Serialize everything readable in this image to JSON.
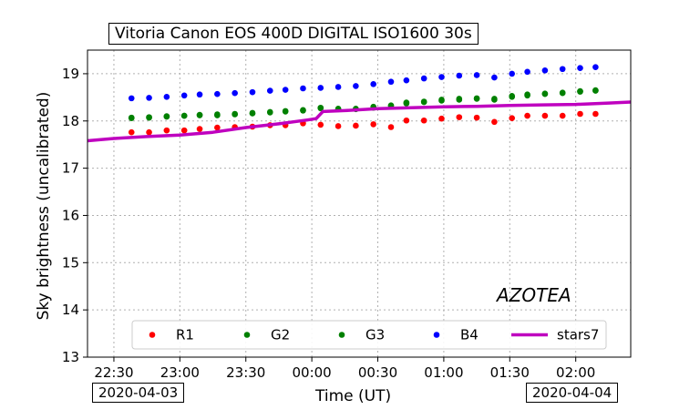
{
  "chart_data": {
    "type": "scatter",
    "title": "Vitoria  Canon EOS 400D DIGITAL  ISO1600 30s",
    "xlabel": "Time (UT)",
    "ylabel": "Sky brightness (uncalibrated)",
    "annotation": "AZOTEA",
    "date_start": "2020-04-03",
    "date_end": "2020-04-04",
    "xlim": [
      "22:18",
      "02:25"
    ],
    "ylim": [
      13,
      19.5
    ],
    "x_ticks": [
      "22:30",
      "23:00",
      "23:30",
      "00:00",
      "00:30",
      "01:00",
      "01:30",
      "02:00"
    ],
    "y_ticks": [
      13,
      14,
      15,
      16,
      17,
      18,
      19
    ],
    "grid": true,
    "legend_position": "bottom",
    "series": [
      {
        "name": "R1",
        "color": "#ff0000",
        "style": "points",
        "x": [
          "22:38",
          "22:46",
          "22:54",
          "23:02",
          "23:09",
          "23:17",
          "23:25",
          "23:33",
          "23:41",
          "23:48",
          "23:56",
          "00:04",
          "00:12",
          "00:20",
          "00:28",
          "00:36",
          "00:43",
          "00:51",
          "00:59",
          "01:07",
          "01:15",
          "01:23",
          "01:31",
          "01:38",
          "01:46",
          "01:54",
          "02:02",
          "02:09"
        ],
        "y": [
          17.76,
          17.76,
          17.8,
          17.8,
          17.83,
          17.86,
          17.87,
          17.88,
          17.91,
          17.91,
          17.95,
          17.92,
          17.89,
          17.9,
          17.93,
          17.87,
          18.01,
          18.01,
          18.05,
          18.08,
          18.07,
          17.98,
          18.06,
          18.11,
          18.11,
          18.11,
          18.15,
          18.15
        ]
      },
      {
        "name": "G2",
        "color": "#008000",
        "style": "points",
        "x": [
          "22:38",
          "22:46",
          "22:54",
          "23:02",
          "23:09",
          "23:17",
          "23:25",
          "23:33",
          "23:41",
          "23:48",
          "23:56",
          "00:04",
          "00:12",
          "00:20",
          "00:28",
          "00:36",
          "00:43",
          "00:51",
          "00:59",
          "01:07",
          "01:15",
          "01:23",
          "01:31",
          "01:38",
          "01:46",
          "01:54",
          "02:02",
          "02:09"
        ],
        "y": [
          18.07,
          18.07,
          18.09,
          18.11,
          18.12,
          18.12,
          18.14,
          18.16,
          18.18,
          18.2,
          18.22,
          18.27,
          18.25,
          18.25,
          18.28,
          18.32,
          18.37,
          18.4,
          18.43,
          18.45,
          18.47,
          18.45,
          18.51,
          18.54,
          18.57,
          18.59,
          18.62,
          18.64
        ]
      },
      {
        "name": "G3",
        "color": "#008000",
        "style": "points",
        "x": [
          "22:38",
          "22:46",
          "22:54",
          "23:02",
          "23:09",
          "23:17",
          "23:25",
          "23:33",
          "23:41",
          "23:48",
          "23:56",
          "00:04",
          "00:12",
          "00:20",
          "00:28",
          "00:36",
          "00:43",
          "00:51",
          "00:59",
          "01:07",
          "01:15",
          "01:23",
          "01:31",
          "01:38",
          "01:46",
          "01:54",
          "02:02",
          "02:09"
        ],
        "y": [
          18.06,
          18.08,
          18.1,
          18.11,
          18.13,
          18.14,
          18.15,
          18.17,
          18.19,
          18.21,
          18.23,
          18.28,
          18.26,
          18.26,
          18.3,
          18.33,
          18.39,
          18.41,
          18.45,
          18.47,
          18.48,
          18.47,
          18.53,
          18.56,
          18.58,
          18.6,
          18.63,
          18.65
        ]
      },
      {
        "name": "B4",
        "color": "#0000ff",
        "style": "points",
        "x": [
          "22:38",
          "22:46",
          "22:54",
          "23:02",
          "23:09",
          "23:17",
          "23:25",
          "23:33",
          "23:41",
          "23:48",
          "23:56",
          "00:04",
          "00:12",
          "00:20",
          "00:28",
          "00:36",
          "00:43",
          "00:51",
          "00:59",
          "01:07",
          "01:15",
          "01:23",
          "01:31",
          "01:38",
          "01:46",
          "01:54",
          "02:02",
          "02:09"
        ],
        "y": [
          18.48,
          18.49,
          18.51,
          18.54,
          18.56,
          18.57,
          18.59,
          18.61,
          18.64,
          18.66,
          18.69,
          18.7,
          18.72,
          18.74,
          18.78,
          18.83,
          18.86,
          18.9,
          18.93,
          18.96,
          18.97,
          18.92,
          19.0,
          19.04,
          19.07,
          19.1,
          19.12,
          19.14
        ]
      },
      {
        "name": "stars7",
        "color": "#bf00bf",
        "style": "line",
        "x": [
          "22:18",
          "22:30",
          "22:45",
          "23:00",
          "23:15",
          "23:30",
          "23:45",
          "23:58",
          "00:02",
          "00:05",
          "00:15",
          "00:30",
          "00:45",
          "01:00",
          "01:15",
          "01:30",
          "01:45",
          "02:00",
          "02:15",
          "02:25"
        ],
        "y": [
          17.58,
          17.63,
          17.67,
          17.7,
          17.76,
          17.86,
          17.94,
          18.02,
          18.05,
          18.2,
          18.22,
          18.26,
          18.28,
          18.3,
          18.31,
          18.33,
          18.34,
          18.35,
          18.38,
          18.4
        ]
      }
    ]
  }
}
